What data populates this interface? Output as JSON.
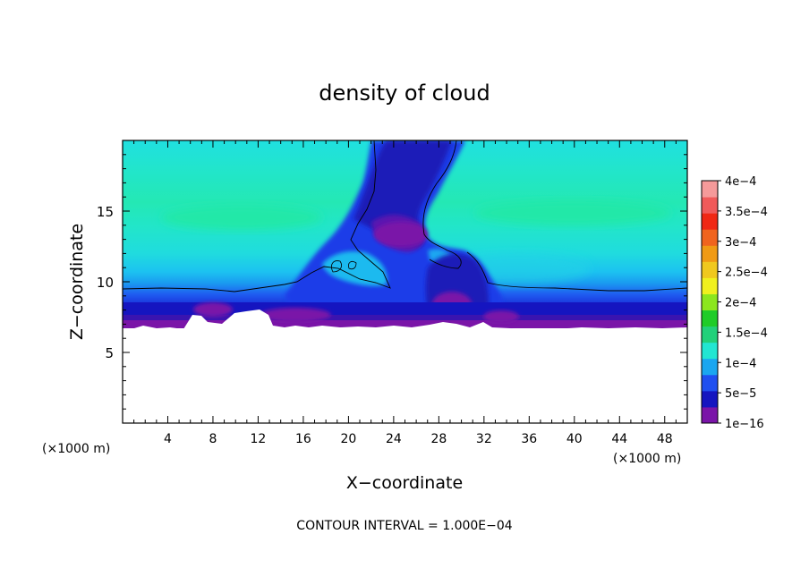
{
  "chart_data": {
    "type": "heatmap",
    "title": "density of cloud",
    "xlabel": "X−coordinate",
    "ylabel": "Z−coordinate",
    "x_unit_label_left": "(×1000 m)",
    "x_unit_label_right": "(×1000 m)",
    "xlim": [
      0,
      50
    ],
    "ylim": [
      0,
      20
    ],
    "x_ticks": [
      4,
      8,
      12,
      16,
      20,
      24,
      28,
      32,
      36,
      40,
      44,
      48
    ],
    "y_ticks": [
      5,
      10,
      15
    ],
    "footer": "CONTOUR INTERVAL = 1.000E−04",
    "colorbar": {
      "labels": [
        "1e−16",
        "5e−5",
        "1e−4",
        "1.5e−4",
        "2e−4",
        "2.5e−4",
        "3e−4",
        "3.5e−4",
        "4e−4"
      ],
      "values": [
        1e-16,
        5e-05,
        0.0001,
        0.00015,
        0.0002,
        0.00025,
        0.0003,
        0.00035,
        0.0004
      ],
      "colors": [
        "#7a15a8",
        "#1515c0",
        "#1f4ff0",
        "#1aa6f0",
        "#22e6d2",
        "#22d07a",
        "#1fcc28",
        "#8ce61e",
        "#f0f01e",
        "#f0c81e",
        "#f09a14",
        "#f0641e",
        "#f02814",
        "#f05a5a",
        "#f59a9a"
      ]
    },
    "field_description": {
      "cloud_base_km": 7,
      "contour_1e-4_level_km": 9.5,
      "updraft_center_x_km": 26
    }
  }
}
